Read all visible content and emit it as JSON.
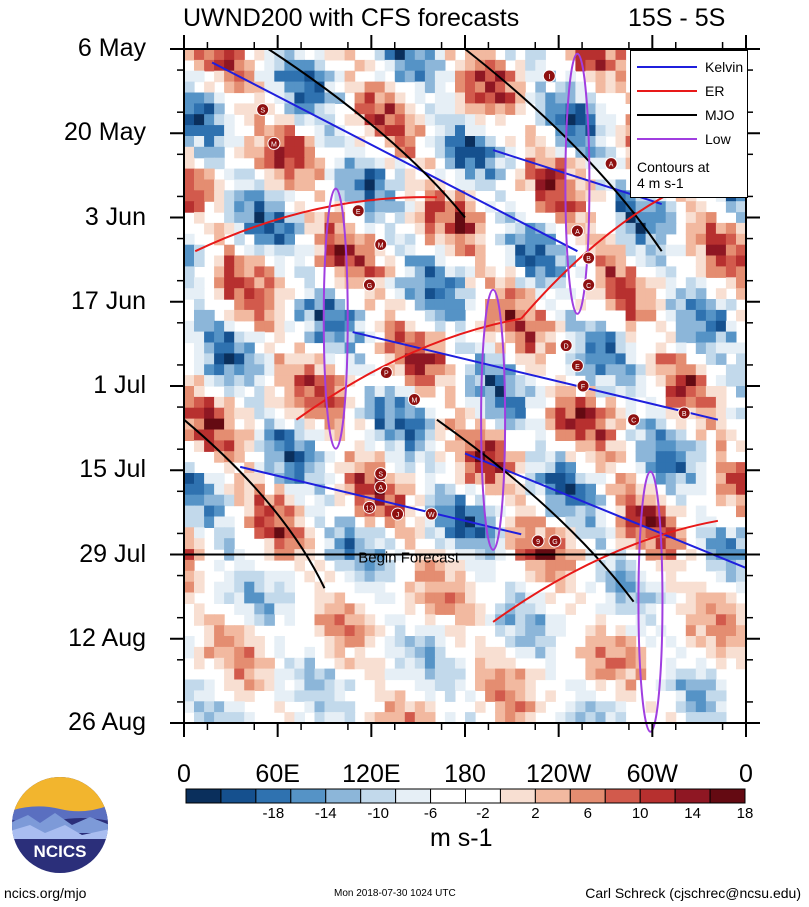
{
  "header": {
    "title": "UWND200 with CFS forecasts",
    "region": "15S - 5S"
  },
  "chart_data": {
    "type": "heatmap",
    "title": "UWND200 with CFS forecasts",
    "region": "15S - 5S",
    "y_ticks": [
      "6 May",
      "20 May",
      "3 Jun",
      "17 Jun",
      "1 Jul",
      "15 Jul",
      "29 Jul",
      "12 Aug",
      "26 Aug"
    ],
    "x_ticks": [
      "0",
      "60E",
      "120E",
      "180",
      "120W",
      "60W",
      "0"
    ],
    "x_range_deg": [
      0,
      360
    ],
    "time_range": [
      "6 May",
      "26 Aug"
    ],
    "colorbar": {
      "ticks": [
        "-18",
        "-14",
        "-10",
        "-6",
        "-2",
        "2",
        "6",
        "10",
        "14",
        "18"
      ],
      "unit": "m s-1",
      "colors": [
        "#0a2f5c",
        "#15508e",
        "#2f72b0",
        "#5593c6",
        "#8cb6d9",
        "#c2d9eb",
        "#e6eff6",
        "#ffffff",
        "#ffffff",
        "#f8dfd2",
        "#f2b9a0",
        "#e48d71",
        "#d25a4c",
        "#b7302f",
        "#8f1723",
        "#640a12"
      ]
    },
    "forecast_marker": {
      "label": "Begin Forecast",
      "date": "29 Jul"
    },
    "legend": [
      {
        "name": "Kelvin",
        "color": "#1f1fdd"
      },
      {
        "name": "ER",
        "color": "#e81919"
      },
      {
        "name": "MJO",
        "color": "#000000"
      },
      {
        "name": "Low",
        "color": "#a03ee0"
      }
    ],
    "legend_note": [
      "Contours at",
      "4 m s-1"
    ],
    "storm_markers": [
      "I",
      "S",
      "M",
      "A",
      "E",
      "A",
      "B",
      "M",
      "G",
      "C",
      "D",
      "E",
      "F",
      "P",
      "M",
      "C",
      "B",
      "S",
      "A",
      "13",
      "J",
      "W",
      "9",
      "G"
    ]
  },
  "footer": {
    "site": "ncics.org/mjo",
    "timestamp": "Mon 2018-07-30 1024 UTC",
    "author": "Carl Schreck (cjschrec@ncsu.edu)",
    "logo_text": "NCICS"
  }
}
